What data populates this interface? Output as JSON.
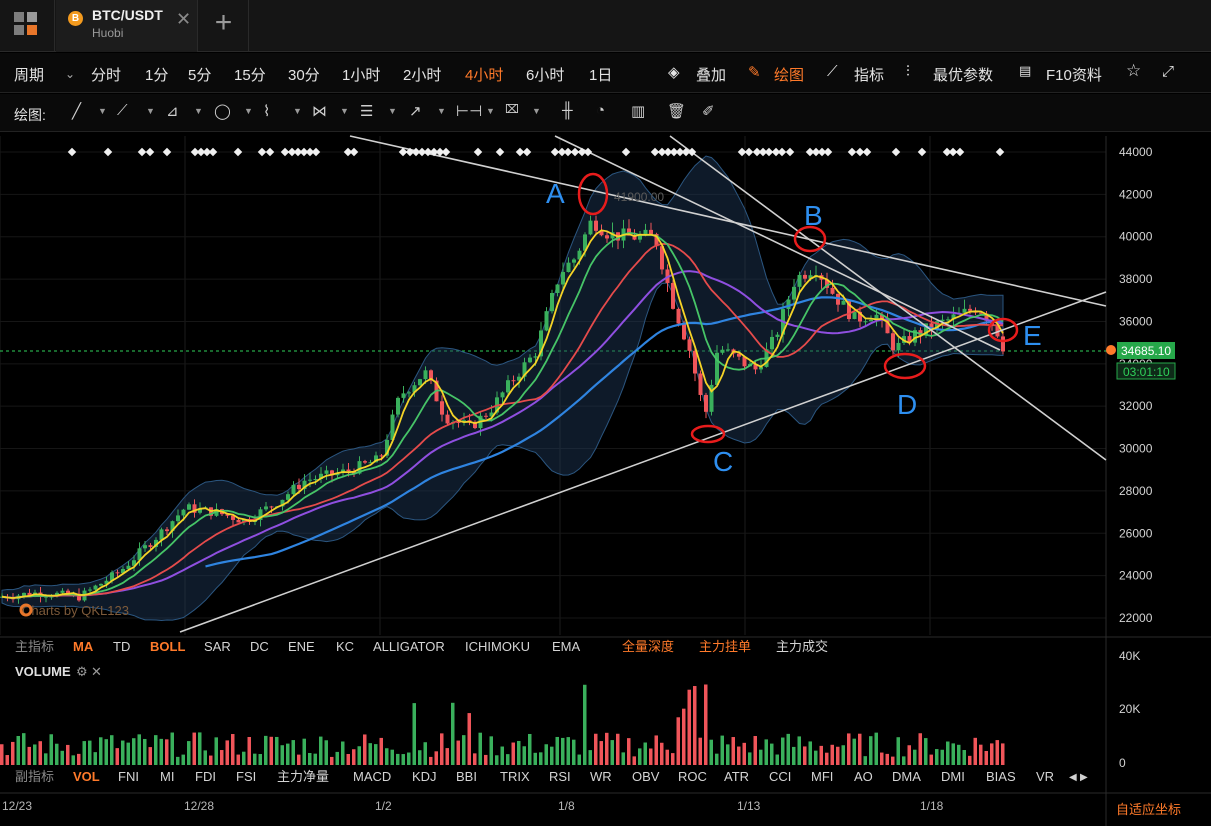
{
  "tab": {
    "symbol": "BTC/USDT",
    "exchange": "Huobi",
    "coin_glyph": "B",
    "close_glyph": "✕",
    "add_glyph": "+"
  },
  "periods": {
    "label": "周期",
    "items": [
      "分时",
      "1分",
      "5分",
      "15分",
      "30分",
      "1小时",
      "2小时",
      "4小时",
      "6小时",
      "1日"
    ],
    "active": "4小时"
  },
  "right_tools": [
    "叠加",
    "绘图",
    "指标",
    "最优参数",
    "F10资料"
  ],
  "draw_toolbar": {
    "label": "绘图:"
  },
  "chart_data": {
    "type": "candlestick",
    "symbol": "BTC/USDT",
    "y_axis_ticks": [
      44000,
      42000,
      40000,
      38000,
      36000,
      34000,
      32000,
      30000,
      28000,
      26000,
      24000,
      22000
    ],
    "ylim": [
      21000,
      44800
    ],
    "x_ticks": [
      "12/23",
      "12/28",
      "1/2",
      "1/8",
      "1/13",
      "1/18"
    ],
    "price_tag": "34685.10",
    "time_tag": "03:01:10",
    "high_label": "41900.00",
    "watermark": "Charts by QKL123",
    "volume_ticks": [
      "40K",
      "20K",
      "0"
    ],
    "points": [
      {
        "label": "A",
        "price": 41500,
        "date": "1/8"
      },
      {
        "label": "B",
        "price": 39800,
        "date": "1/14"
      },
      {
        "label": "C",
        "price": 30500,
        "date": "1/11"
      },
      {
        "label": "D",
        "price": 34000,
        "date": "1/17"
      },
      {
        "label": "E",
        "price": 35900,
        "date": "1/20"
      }
    ],
    "indicators": [
      "MA",
      "BOLL"
    ],
    "colors": {
      "up": "#3ab05c",
      "down": "#f0555a",
      "ma_yellow": "#f5d327",
      "ma_green": "#46c467",
      "ma_red": "#e54b4b",
      "ma_purple": "#8f4fe0",
      "ma_blue": "#2f84e0",
      "boll_band": "#1e3a5c",
      "marker": "#e81c1c",
      "label": "#2e8ff0",
      "accent": "#ff7a2a"
    }
  },
  "main_indicator_tabs": {
    "label": "主指标",
    "items": [
      "MA",
      "TD",
      "BOLL",
      "SAR",
      "DC",
      "ENE",
      "KC",
      "ALLIGATOR",
      "ICHIMOKU",
      "EMA"
    ],
    "active": [
      "MA",
      "BOLL"
    ],
    "extra": [
      "全量深度",
      "主力挂单",
      "主力成交"
    ]
  },
  "volume_title": "VOLUME",
  "sub_indicator_tabs": {
    "label": "副指标",
    "items": [
      "VOL",
      "FNI",
      "MI",
      "FDI",
      "FSI",
      "主力净量",
      "MACD",
      "KDJ",
      "BBI",
      "TRIX",
      "RSI",
      "WR",
      "OBV",
      "ROC",
      "ATR",
      "CCI",
      "MFI",
      "AO",
      "DMA",
      "DMI",
      "BIAS",
      "VR"
    ],
    "active": "VOL"
  },
  "adaptive_label": "自适应坐标"
}
